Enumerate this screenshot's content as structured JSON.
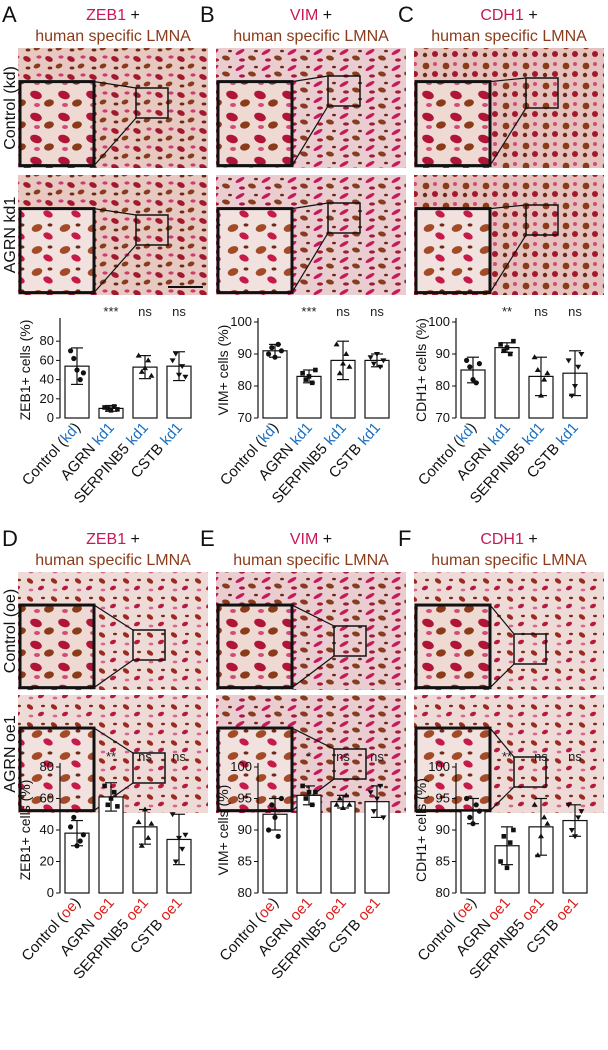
{
  "colors": {
    "marker": "#c8185a",
    "lmna": "#8a3b1a",
    "kd": "#1a6fc0",
    "oe": "#d8201c",
    "black": "#111111"
  },
  "panels": [
    {
      "letter": "A",
      "marker": "ZEB1",
      "plus": "+",
      "subtitle": "human specific LMNA",
      "rows": [
        "Control (kd)",
        "AGRN kd1"
      ]
    },
    {
      "letter": "B",
      "marker": "VIM",
      "plus": "+",
      "subtitle": "human specific LMNA",
      "rows": [
        "",
        ""
      ]
    },
    {
      "letter": "C",
      "marker": "CDH1",
      "plus": "+",
      "subtitle": "human specific LMNA",
      "rows": [
        "",
        ""
      ]
    },
    {
      "letter": "D",
      "marker": "ZEB1",
      "plus": "+",
      "subtitle": "human specific LMNA",
      "rows": [
        "Control (oe)",
        "AGRN oe1"
      ]
    },
    {
      "letter": "E",
      "marker": "VIM",
      "plus": "+",
      "subtitle": "human specific LMNA",
      "rows": [
        "",
        ""
      ]
    },
    {
      "letter": "F",
      "marker": "CDH1",
      "plus": "+",
      "subtitle": "human specific LMNA",
      "rows": [
        "",
        ""
      ]
    }
  ],
  "chart_data": [
    {
      "type": "bar",
      "panel": "A",
      "ylabel": "ZEB1+ cells (%)",
      "ylim": [
        0,
        100
      ],
      "yticks": [
        0,
        20,
        40,
        60,
        80
      ],
      "categories": [
        "Control (kd)",
        "AGRN kd1",
        "SERPINB5 kd1",
        "CSTB kd1"
      ],
      "values": [
        54,
        10,
        53,
        54
      ],
      "errors": [
        19,
        3,
        12,
        15
      ],
      "significance": [
        "",
        "***",
        "ns",
        "ns"
      ],
      "points": [
        [
          70,
          62,
          50,
          40,
          47
        ],
        [
          11,
          10,
          8,
          12,
          9
        ],
        [
          65,
          48,
          52,
          60,
          44
        ],
        [
          60,
          67,
          45,
          54,
          43
        ]
      ]
    },
    {
      "type": "bar",
      "panel": "B",
      "ylabel": "VIM+ cells (%)",
      "ylim": [
        70,
        100
      ],
      "yticks": [
        70,
        80,
        90,
        100
      ],
      "categories": [
        "Control (kd)",
        "AGRN kd1",
        "SERPINB5 kd1",
        "CSTB kd1"
      ],
      "values": [
        91,
        83,
        88,
        88
      ],
      "errors": [
        2,
        2,
        6,
        2
      ],
      "significance": [
        "",
        "***",
        "ns",
        "ns"
      ],
      "points": [
        [
          90,
          92,
          89,
          93,
          91
        ],
        [
          84,
          82,
          83,
          81,
          85
        ],
        [
          93,
          84,
          87,
          90,
          86
        ],
        [
          89,
          87,
          90,
          86,
          88
        ]
      ]
    },
    {
      "type": "bar",
      "panel": "C",
      "ylabel": "CDH1+ cells (%)",
      "ylim": [
        70,
        100
      ],
      "yticks": [
        70,
        80,
        90,
        100
      ],
      "categories": [
        "Control (kd)",
        "AGRN kd1",
        "SERPINB5 kd1",
        "CSTB kd1"
      ],
      "values": [
        85,
        92,
        83,
        84
      ],
      "errors": [
        4,
        1.5,
        6,
        7
      ],
      "significance": [
        "",
        "**",
        "ns",
        "ns"
      ],
      "points": [
        [
          88,
          86,
          82,
          81,
          87
        ],
        [
          93,
          91,
          92,
          90,
          94
        ],
        [
          89,
          85,
          77,
          82,
          84
        ],
        [
          88,
          77,
          80,
          86,
          90
        ]
      ]
    },
    {
      "type": "bar",
      "panel": "D",
      "ylabel": "ZEB1+ cells (%)",
      "ylim": [
        0,
        80
      ],
      "yticks": [
        0,
        20,
        40,
        60,
        80
      ],
      "categories": [
        "Control (oe)",
        "AGRN oe1",
        "SERPINB5 oe1",
        "CSTB oe1"
      ],
      "values": [
        38,
        61,
        42,
        34
      ],
      "errors": [
        8,
        9,
        11,
        16
      ],
      "significance": [
        "",
        "**",
        "ns",
        "ns"
      ],
      "points": [
        [
          42,
          48,
          30,
          33,
          37
        ],
        [
          68,
          56,
          60,
          64,
          55
        ],
        [
          45,
          30,
          53,
          35,
          44
        ],
        [
          50,
          20,
          35,
          28,
          37
        ]
      ]
    },
    {
      "type": "bar",
      "panel": "E",
      "ylabel": "VIM+ cells (%)",
      "ylim": [
        80,
        100
      ],
      "yticks": [
        80,
        85,
        90,
        95,
        100
      ],
      "categories": [
        "Control (oe)",
        "AGRN oe1",
        "SERPINB5 oe1",
        "CSTB oe1"
      ],
      "values": [
        92.5,
        95.5,
        94.5,
        94.5
      ],
      "errors": [
        2.5,
        1.5,
        1,
        2.5
      ],
      "significance": [
        "",
        "*",
        "ns",
        "ns"
      ],
      "points": [
        [
          90,
          94,
          92,
          89,
          95
        ],
        [
          97,
          95,
          96,
          94,
          96
        ],
        [
          94,
          95,
          93.5,
          95.5,
          94
        ],
        [
          96,
          93,
          95,
          97,
          92
        ]
      ]
    },
    {
      "type": "bar",
      "panel": "F",
      "ylabel": "CDH1+ cells (%)",
      "ylim": [
        80,
        100
      ],
      "yticks": [
        80,
        85,
        90,
        95,
        100
      ],
      "categories": [
        "Control (oe)",
        "AGRN oe1",
        "SERPINB5 oe1",
        "CSTB oe1"
      ],
      "values": [
        93,
        87.5,
        90.5,
        91.5
      ],
      "errors": [
        2,
        3,
        4.5,
        2.5
      ],
      "significance": [
        "",
        "**",
        "ns",
        "ns"
      ],
      "points": [
        [
          95,
          92,
          91,
          94,
          93
        ],
        [
          85,
          89,
          84,
          88,
          90
        ],
        [
          94,
          86,
          89,
          92,
          91
        ],
        [
          94,
          90,
          89,
          92,
          93
        ]
      ]
    }
  ]
}
